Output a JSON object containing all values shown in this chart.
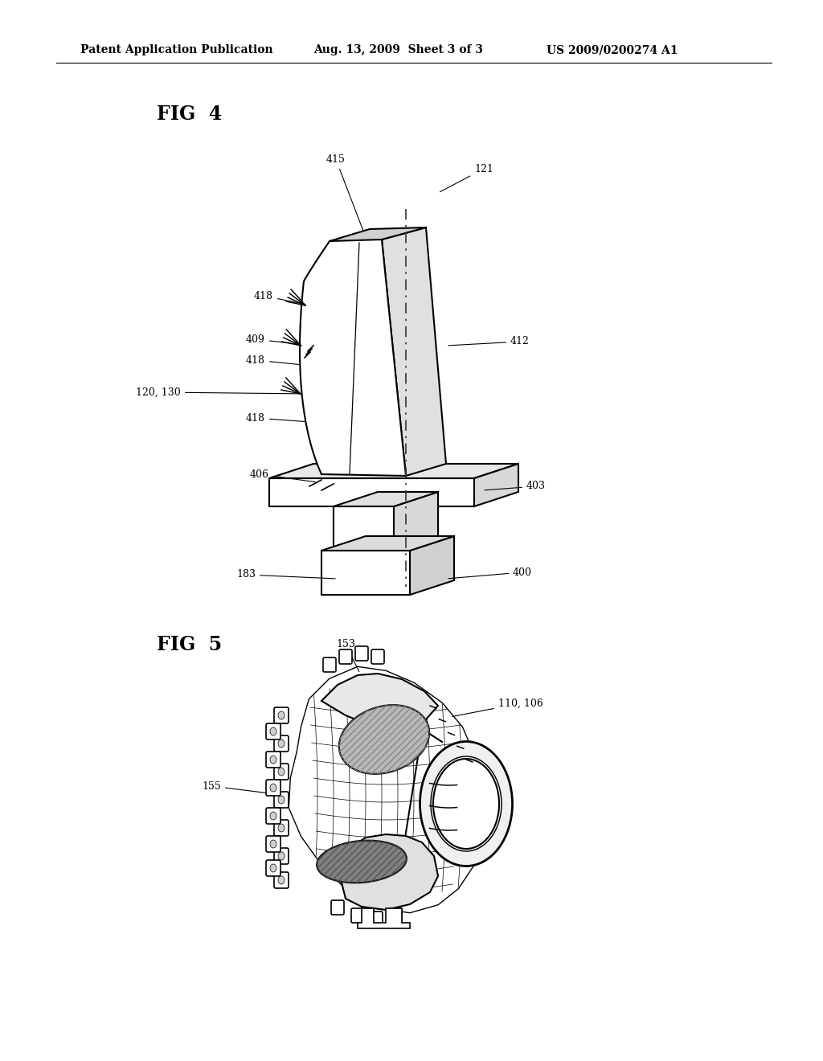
{
  "bg_color": "#ffffff",
  "header_left": "Patent Application Publication",
  "header_mid": "Aug. 13, 2009  Sheet 3 of 3",
  "header_right": "US 2009/0200274 A1",
  "header_fontsize": 10,
  "fig4_label": "FIG  4",
  "fig5_label": "FIG  5",
  "line_color": "#000000",
  "annotation_fontsize": 9
}
